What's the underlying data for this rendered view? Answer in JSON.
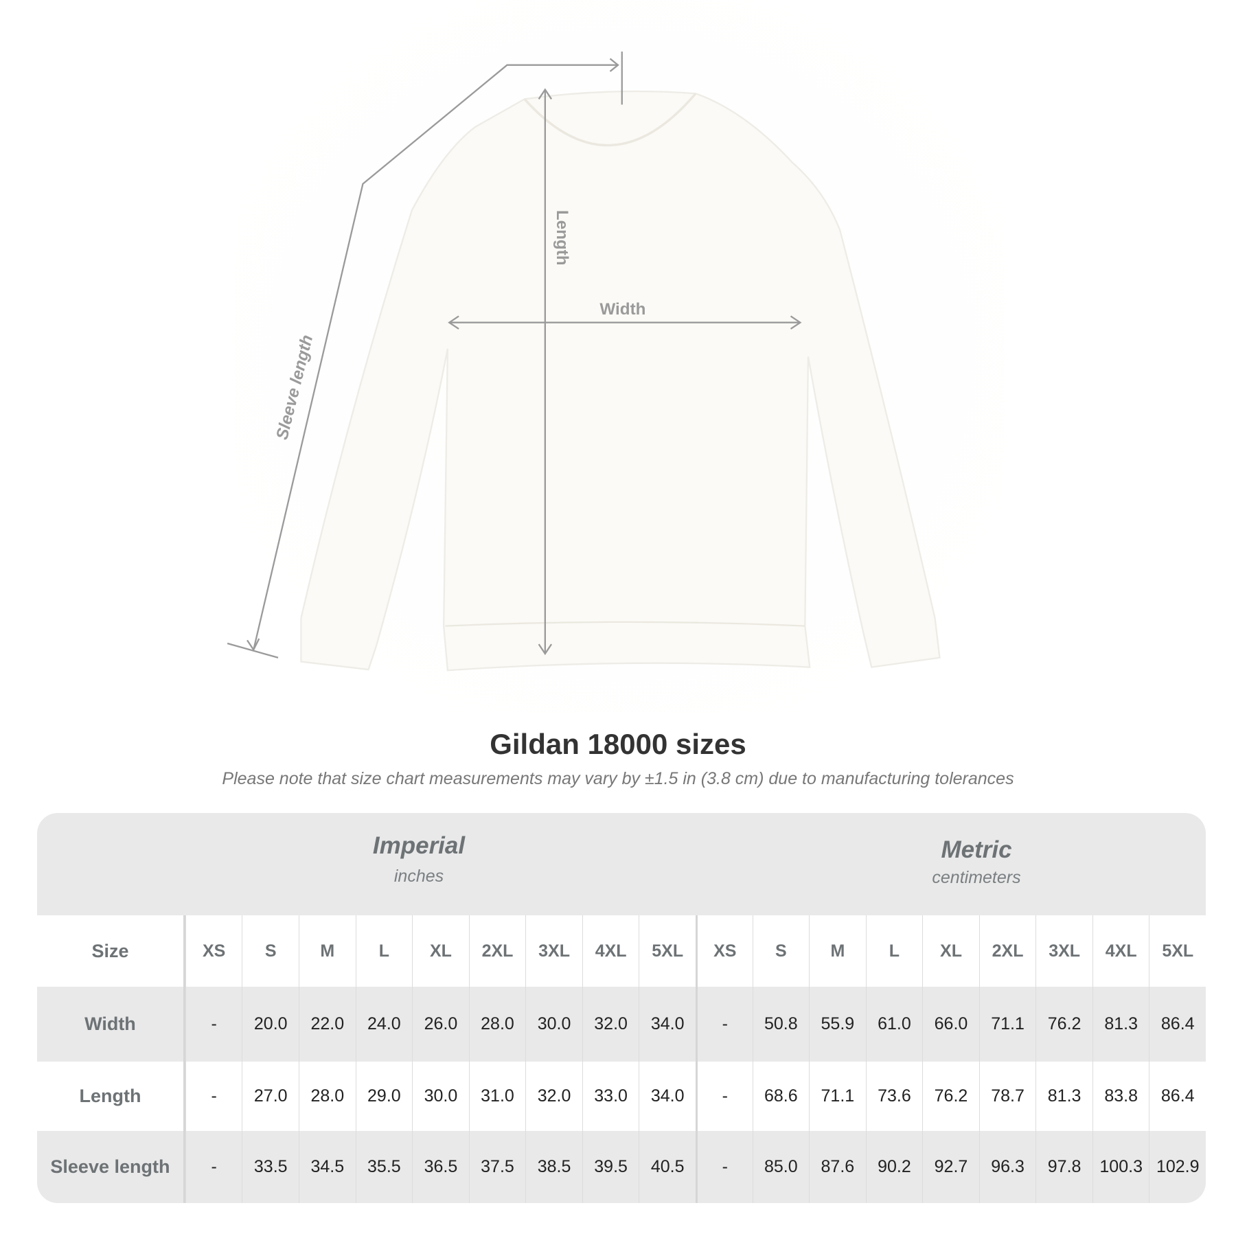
{
  "diagram": {
    "labels": {
      "length": "Length",
      "width": "Width",
      "sleeve_length": "Sleeve length"
    },
    "line_color": "#9a9a9a",
    "garment_color": "#fbfaf6"
  },
  "title": "Gildan 18000 sizes",
  "note": "Please note that size chart measurements may vary by ±1.5 in (3.8 cm) due to manufacturing tolerances",
  "table": {
    "imperial": {
      "name": "Imperial",
      "unit": "inches"
    },
    "metric": {
      "name": "Metric",
      "unit": "centimeters"
    },
    "size_label": "Size",
    "sizes": [
      "XS",
      "S",
      "M",
      "L",
      "XL",
      "2XL",
      "3XL",
      "4XL",
      "5XL"
    ],
    "rows": [
      {
        "label": "Width",
        "imperial": [
          "-",
          "20.0",
          "22.0",
          "24.0",
          "26.0",
          "28.0",
          "30.0",
          "32.0",
          "34.0"
        ],
        "metric": [
          "-",
          "50.8",
          "55.9",
          "61.0",
          "66.0",
          "71.1",
          "76.2",
          "81.3",
          "86.4"
        ]
      },
      {
        "label": "Length",
        "imperial": [
          "-",
          "27.0",
          "28.0",
          "29.0",
          "30.0",
          "31.0",
          "32.0",
          "33.0",
          "34.0"
        ],
        "metric": [
          "-",
          "68.6",
          "71.1",
          "73.6",
          "76.2",
          "78.7",
          "81.3",
          "83.8",
          "86.4"
        ]
      },
      {
        "label": "Sleeve length",
        "imperial": [
          "-",
          "33.5",
          "34.5",
          "35.5",
          "36.5",
          "37.5",
          "38.5",
          "39.5",
          "40.5"
        ],
        "metric": [
          "-",
          "85.0",
          "87.6",
          "90.2",
          "92.7",
          "96.3",
          "97.8",
          "100.3",
          "102.9"
        ]
      }
    ]
  }
}
